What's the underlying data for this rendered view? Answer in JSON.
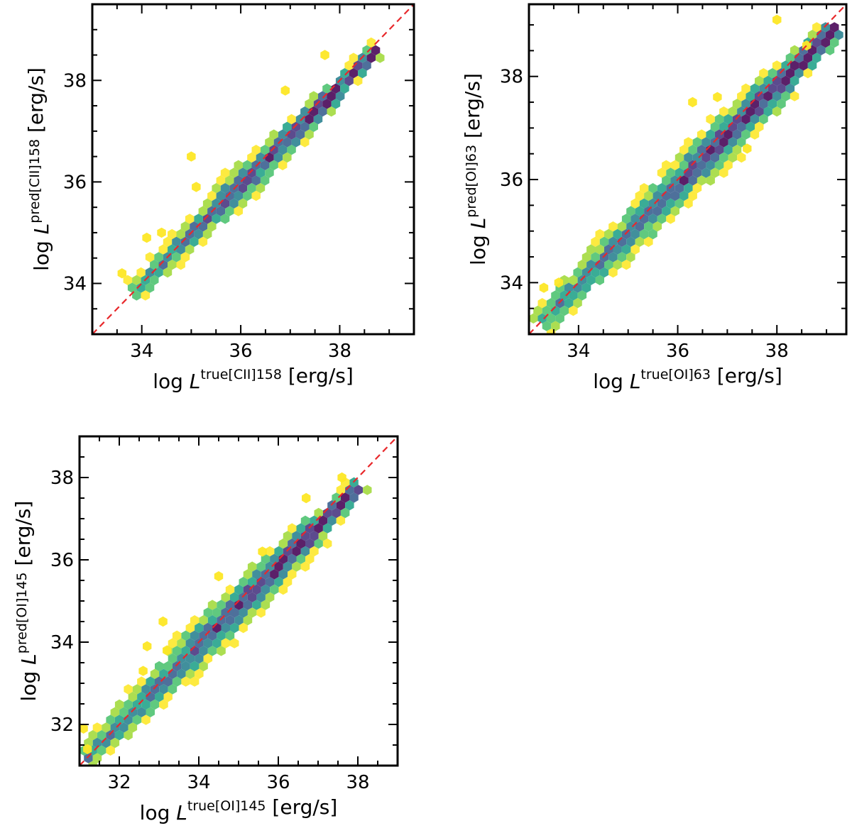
{
  "chart_data": [
    {
      "type": "hexbin",
      "id": "cii158",
      "xlabel": {
        "prefix": "log ",
        "var": "L",
        "sup": "true",
        "sub": "[CII]158",
        "unit": " [erg/s]"
      },
      "ylabel": {
        "prefix": "log ",
        "var": "L",
        "sup": "pred",
        "sub": "[CII]158",
        "unit": " [erg/s]"
      },
      "xlim": [
        33.0,
        39.5
      ],
      "ylim": [
        33.0,
        39.5
      ],
      "xticks": [
        34,
        36,
        38
      ],
      "yticks": [
        34,
        36,
        38
      ],
      "xtick_labels": [
        "34",
        "36",
        "38"
      ],
      "ytick_labels": [
        "34",
        "36",
        "38"
      ],
      "reference_line": {
        "label": "y = x",
        "style": "dashed",
        "color": "#e8282b"
      },
      "data_range": [
        33.8,
        38.8
      ],
      "scatter_width": [
        0.25,
        0.32,
        0.38,
        0.32,
        0.28,
        0.2
      ],
      "outliers": [
        [
          33.6,
          34.2
        ],
        [
          34.1,
          34.9
        ],
        [
          34.4,
          35.0
        ],
        [
          35.0,
          36.5
        ],
        [
          35.1,
          35.9
        ],
        [
          36.9,
          37.8
        ],
        [
          37.7,
          38.5
        ]
      ],
      "colormap": [
        "#fde725",
        "#a0da39",
        "#4ac16d",
        "#1fa187",
        "#277f8e",
        "#365c8d",
        "#46327e",
        "#440154"
      ]
    },
    {
      "type": "hexbin",
      "id": "oi63",
      "xlabel": {
        "prefix": "log ",
        "var": "L",
        "sup": "true",
        "sub": "[OI]63",
        "unit": " [erg/s]"
      },
      "ylabel": {
        "prefix": "log ",
        "var": "L",
        "sup": "pred",
        "sub": "[OI]63",
        "unit": " [erg/s]"
      },
      "xlim": [
        33.0,
        39.4
      ],
      "ylim": [
        33.0,
        39.4
      ],
      "xticks": [
        34,
        36,
        38
      ],
      "yticks": [
        34,
        36,
        38
      ],
      "xtick_labels": [
        "34",
        "36",
        "38"
      ],
      "ytick_labels": [
        "34",
        "36",
        "38"
      ],
      "reference_line": {
        "label": "y = x",
        "style": "dashed",
        "color": "#e8282b"
      },
      "data_range": [
        33.2,
        39.2
      ],
      "scatter_width": [
        0.3,
        0.38,
        0.42,
        0.45,
        0.4,
        0.3
      ],
      "outliers": [
        [
          33.3,
          33.9
        ],
        [
          33.6,
          34.0
        ],
        [
          36.3,
          37.5
        ],
        [
          36.8,
          37.6
        ],
        [
          37.4,
          36.6
        ],
        [
          38.0,
          39.1
        ],
        [
          38.6,
          38.6
        ]
      ],
      "colormap": [
        "#fde725",
        "#a0da39",
        "#4ac16d",
        "#1fa187",
        "#277f8e",
        "#365c8d",
        "#46327e",
        "#440154"
      ]
    },
    {
      "type": "hexbin",
      "id": "oi145",
      "xlabel": {
        "prefix": "log ",
        "var": "L",
        "sup": "true",
        "sub": "[OI]145",
        "unit": " [erg/s]"
      },
      "ylabel": {
        "prefix": "log ",
        "var": "L",
        "sup": "pred",
        "sub": "[OI]145",
        "unit": " [erg/s]"
      },
      "xlim": [
        31.0,
        39.0
      ],
      "ylim": [
        31.0,
        39.0
      ],
      "xticks": [
        32,
        34,
        36,
        38
      ],
      "yticks": [
        32,
        34,
        36,
        38
      ],
      "xtick_labels": [
        "32",
        "34",
        "36",
        "38"
      ],
      "ytick_labels": [
        "32",
        "34",
        "36",
        "38"
      ],
      "reference_line": {
        "label": "y = x",
        "style": "dashed",
        "color": "#e8282b"
      },
      "data_range": [
        31.1,
        38.1
      ],
      "scatter_width": [
        0.35,
        0.45,
        0.55,
        0.55,
        0.45,
        0.3
      ],
      "outliers": [
        [
          31.1,
          31.9
        ],
        [
          31.2,
          31.4
        ],
        [
          32.6,
          33.3
        ],
        [
          32.7,
          33.9
        ],
        [
          33.1,
          34.5
        ],
        [
          33.2,
          33.8
        ],
        [
          34.5,
          35.6
        ],
        [
          35.6,
          36.2
        ],
        [
          36.7,
          37.5
        ],
        [
          37.6,
          38.0
        ]
      ],
      "colormap": [
        "#fde725",
        "#a0da39",
        "#4ac16d",
        "#1fa187",
        "#277f8e",
        "#365c8d",
        "#46327e",
        "#440154"
      ]
    }
  ]
}
